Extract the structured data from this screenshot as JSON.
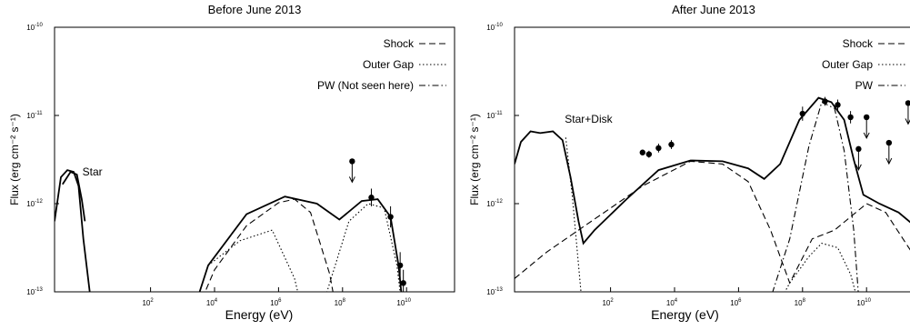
{
  "chart_data": [
    {
      "type": "line",
      "title": "Before June 2013",
      "xlabel": "Energy (eV)",
      "ylabel": "Flux (erg cm⁻² s⁻¹)",
      "xscale": "log",
      "yscale": "log",
      "xlim_log10": [
        -1,
        11.5
      ],
      "ylim_log10": [
        -13,
        -10
      ],
      "x_ticks": [
        {
          "v": 2,
          "base": "10",
          "exp": "2"
        },
        {
          "v": 4,
          "base": "10",
          "exp": "4"
        },
        {
          "v": 6,
          "base": "10",
          "exp": "6"
        },
        {
          "v": 8,
          "base": "10",
          "exp": "8"
        },
        {
          "v": 10,
          "base": "10",
          "exp": "10"
        }
      ],
      "y_ticks": [
        {
          "v": -13,
          "base": "10",
          "exp": "-13"
        },
        {
          "v": -12,
          "base": "10",
          "exp": "-12"
        },
        {
          "v": -11,
          "base": "10",
          "exp": "-11"
        },
        {
          "v": -10,
          "base": "10",
          "exp": "-10"
        }
      ],
      "legend_position": "top-right",
      "legend": [
        {
          "label": "Shock",
          "style": "dashed"
        },
        {
          "label": "Outer Gap",
          "style": "dotted"
        },
        {
          "label": "PW (Not seen here)",
          "style": "dashdot"
        }
      ],
      "annotations": [
        {
          "text": "Star",
          "x": -0.3,
          "y": -11.68
        }
      ],
      "series": [
        {
          "style": "solid",
          "points": [
            [
              -1,
              -12.2
            ],
            [
              -0.8,
              -11.7
            ],
            [
              -0.6,
              -11.62
            ],
            [
              -0.4,
              -11.64
            ],
            [
              -0.25,
              -11.8
            ],
            [
              -0.1,
              -12.4
            ],
            [
              0.1,
              -13.0
            ],
            [
              0.3,
              -13.6
            ],
            [
              3.0,
              -13.6
            ],
            [
              3.8,
              -12.7
            ],
            [
              5,
              -12.12
            ],
            [
              6.2,
              -11.92
            ],
            [
              7.2,
              -12.0
            ],
            [
              7.9,
              -12.18
            ],
            [
              8.6,
              -11.97
            ],
            [
              9.1,
              -11.95
            ],
            [
              9.5,
              -12.15
            ],
            [
              9.75,
              -12.7
            ],
            [
              9.95,
              -13.4
            ],
            [
              10.4,
              -13.3
            ],
            [
              11.0,
              -13.25
            ],
            [
              11.4,
              -13.35
            ]
          ]
        },
        {
          "style": "dashed",
          "points": [
            [
              3.0,
              -13.6
            ],
            [
              4,
              -12.75
            ],
            [
              5,
              -12.25
            ],
            [
              6,
              -11.99
            ],
            [
              6.5,
              -11.95
            ],
            [
              7.0,
              -12.1
            ],
            [
              7.6,
              -12.8
            ],
            [
              8,
              -13.6
            ]
          ]
        },
        {
          "style": "dotted",
          "points": [
            [
              3.8,
              -12.7
            ],
            [
              4.8,
              -12.42
            ],
            [
              5.8,
              -12.3
            ],
            [
              6.5,
              -12.85
            ],
            [
              7.0,
              -13.6
            ]
          ]
        },
        {
          "style": "dotted",
          "points": [
            [
              7.0,
              -13.6
            ],
            [
              7.6,
              -12.9
            ],
            [
              8.2,
              -12.2
            ],
            [
              8.8,
              -12.0
            ],
            [
              9.3,
              -12.05
            ],
            [
              9.7,
              -12.7
            ],
            [
              10.0,
              -13.6
            ]
          ]
        },
        {
          "style": "solid",
          "points": [
            [
              -0.75,
              -11.78
            ],
            [
              -0.5,
              -11.64
            ],
            [
              -0.3,
              -11.67
            ],
            [
              -0.15,
              -11.95
            ],
            [
              -0.05,
              -12.2
            ]
          ]
        }
      ],
      "data_points": [
        {
          "x": 8.3,
          "y": -11.52,
          "upper_limit": true
        },
        {
          "x": 8.9,
          "y": -11.93,
          "err": 0.1
        },
        {
          "x": 9.5,
          "y": -12.15,
          "err": 0.12
        },
        {
          "x": 9.8,
          "y": -12.7,
          "err": 0.15
        },
        {
          "x": 9.9,
          "y": -12.9,
          "err": 0.15
        }
      ]
    },
    {
      "type": "line",
      "title": "After June 2013",
      "xlabel": "Energy (eV)",
      "ylabel": "Flux (erg cm⁻² s⁻¹)",
      "xscale": "log",
      "yscale": "log",
      "xlim_log10": [
        -1,
        11.5
      ],
      "ylim_log10": [
        -13,
        -10
      ],
      "x_ticks": [
        {
          "v": 2,
          "base": "10",
          "exp": "2"
        },
        {
          "v": 4,
          "base": "10",
          "exp": "4"
        },
        {
          "v": 6,
          "base": "10",
          "exp": "6"
        },
        {
          "v": 8,
          "base": "10",
          "exp": "8"
        },
        {
          "v": 10,
          "base": "10",
          "exp": "10"
        }
      ],
      "y_ticks": [
        {
          "v": -13,
          "base": "10",
          "exp": "-13"
        },
        {
          "v": -12,
          "base": "10",
          "exp": "-12"
        },
        {
          "v": -11,
          "base": "10",
          "exp": "-11"
        },
        {
          "v": -10,
          "base": "10",
          "exp": "-10"
        }
      ],
      "legend_position": "top-right",
      "legend": [
        {
          "label": "Shock",
          "style": "dashed"
        },
        {
          "label": "Outer Gap",
          "style": "dotted"
        },
        {
          "label": "PW",
          "style": "dashdot"
        }
      ],
      "annotations": [
        {
          "text": "Star+Disk",
          "x": 0.4,
          "y": -11.08
        }
      ],
      "series": [
        {
          "style": "solid",
          "points": [
            [
              -1,
              -11.55
            ],
            [
              -0.8,
              -11.3
            ],
            [
              -0.5,
              -11.18
            ],
            [
              -0.2,
              -11.2
            ],
            [
              0.2,
              -11.18
            ],
            [
              0.5,
              -11.28
            ],
            [
              0.75,
              -11.7
            ],
            [
              1.0,
              -12.2
            ],
            [
              1.15,
              -12.45
            ],
            [
              1.5,
              -12.3
            ],
            [
              2.5,
              -11.95
            ],
            [
              3.5,
              -11.62
            ],
            [
              4.5,
              -11.51
            ],
            [
              5.5,
              -11.52
            ],
            [
              6.3,
              -11.6
            ],
            [
              6.8,
              -11.72
            ],
            [
              7.3,
              -11.55
            ],
            [
              7.9,
              -11.05
            ],
            [
              8.5,
              -10.8
            ],
            [
              8.9,
              -10.85
            ],
            [
              9.3,
              -11.05
            ],
            [
              9.6,
              -11.5
            ],
            [
              9.9,
              -11.9
            ],
            [
              10.4,
              -12.0
            ],
            [
              11.0,
              -12.1
            ],
            [
              11.5,
              -12.25
            ]
          ]
        },
        {
          "style": "dotted",
          "points": [
            [
              0.6,
              -11.25
            ],
            [
              0.8,
              -11.9
            ],
            [
              1.0,
              -12.7
            ],
            [
              1.15,
              -13.3
            ]
          ]
        },
        {
          "style": "dashed",
          "points": [
            [
              -1,
              -12.85
            ],
            [
              0,
              -12.55
            ],
            [
              1,
              -12.3
            ],
            [
              2,
              -12.05
            ],
            [
              3,
              -11.8
            ],
            [
              4.5,
              -11.52
            ],
            [
              5.5,
              -11.55
            ],
            [
              6.3,
              -11.75
            ],
            [
              7.0,
              -12.3
            ],
            [
              7.6,
              -12.9
            ],
            [
              8.3,
              -12.4
            ],
            [
              9.0,
              -12.3
            ],
            [
              10.0,
              -12.0
            ],
            [
              10.6,
              -12.1
            ],
            [
              11.5,
              -12.6
            ]
          ]
        },
        {
          "style": "dotted",
          "points": [
            [
              7.0,
              -13.3
            ],
            [
              7.6,
              -12.9
            ],
            [
              8.2,
              -12.6
            ],
            [
              8.6,
              -12.45
            ],
            [
              9.1,
              -12.5
            ],
            [
              9.5,
              -12.8
            ],
            [
              9.8,
              -13.2
            ]
          ]
        },
        {
          "style": "dashdot",
          "points": [
            [
              6.8,
              -13.3
            ],
            [
              7.6,
              -12.4
            ],
            [
              8.2,
              -11.35
            ],
            [
              8.6,
              -10.85
            ],
            [
              9.0,
              -10.92
            ],
            [
              9.3,
              -11.4
            ],
            [
              9.6,
              -12.3
            ],
            [
              9.8,
              -13.3
            ]
          ]
        }
      ],
      "data_points": [
        {
          "x": 3.0,
          "y": -11.42,
          "err": 0.03
        },
        {
          "x": 3.2,
          "y": -11.44,
          "err": 0.04
        },
        {
          "x": 3.5,
          "y": -11.37,
          "err": 0.05
        },
        {
          "x": 3.9,
          "y": -11.33,
          "err": 0.05
        },
        {
          "x": 8.0,
          "y": -10.98,
          "err": 0.08
        },
        {
          "x": 8.7,
          "y": -10.84,
          "err": 0.05
        },
        {
          "x": 9.1,
          "y": -10.88,
          "err": 0.06
        },
        {
          "x": 9.5,
          "y": -11.02,
          "err": 0.07
        },
        {
          "x": 9.75,
          "y": -11.38,
          "upper_limit": true
        },
        {
          "x": 10.0,
          "y": -11.02,
          "upper_limit": true
        },
        {
          "x": 10.7,
          "y": -11.31,
          "upper_limit": true
        },
        {
          "x": 11.3,
          "y": -10.86,
          "upper_limit": true
        }
      ]
    }
  ]
}
